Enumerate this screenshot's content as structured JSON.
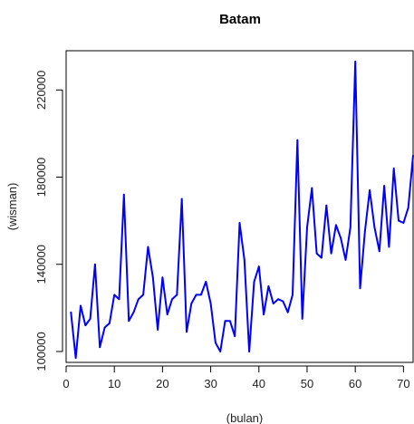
{
  "chart_data": {
    "type": "line",
    "title": "Batam",
    "xlabel": "(bulan)",
    "ylabel": "(wisman)",
    "xlim": [
      0,
      72
    ],
    "ylim": [
      95000,
      238000
    ],
    "x_ticks": [
      0,
      10,
      20,
      30,
      40,
      50,
      60,
      70
    ],
    "y_ticks": [
      100000,
      140000,
      180000,
      220000
    ],
    "grid": false,
    "series": [
      {
        "color": "#0000ff",
        "x": [
          1,
          2,
          3,
          4,
          5,
          6,
          7,
          8,
          9,
          10,
          11,
          12,
          13,
          14,
          15,
          16,
          17,
          18,
          19,
          20,
          21,
          22,
          23,
          24,
          25,
          26,
          27,
          28,
          29,
          30,
          31,
          32,
          33,
          34,
          35,
          36,
          37,
          38,
          39,
          40,
          41,
          42,
          43,
          44,
          45,
          46,
          47,
          48,
          49,
          50,
          51,
          52,
          53,
          54,
          55,
          56,
          57,
          58,
          59,
          60,
          61,
          62,
          63,
          64,
          65,
          66,
          67,
          68,
          69,
          70,
          71,
          72
        ],
        "values": [
          118000,
          97000,
          121000,
          112000,
          115000,
          140000,
          102000,
          111000,
          113000,
          126000,
          124000,
          172000,
          114000,
          118000,
          124000,
          126000,
          148000,
          134000,
          110000,
          134000,
          117000,
          124000,
          126000,
          170000,
          109000,
          122000,
          126000,
          126000,
          132000,
          122000,
          104000,
          100000,
          114000,
          114000,
          107000,
          159000,
          142000,
          100000,
          132000,
          139000,
          117000,
          130000,
          122000,
          124000,
          123000,
          118000,
          126000,
          197000,
          115000,
          157000,
          175000,
          145000,
          143000,
          167000,
          145000,
          158000,
          152000,
          142000,
          157000,
          233000,
          129000,
          155000,
          174000,
          157000,
          146000,
          176000,
          148000,
          184000,
          160000,
          159000,
          166000,
          190000
        ]
      }
    ]
  }
}
